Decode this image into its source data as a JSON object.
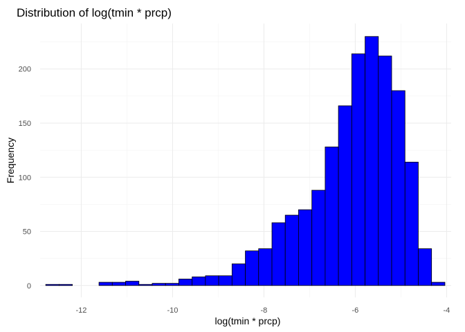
{
  "chart_data": {
    "type": "bar",
    "title": "Distribution of log(tmin * prcp)",
    "xlabel": "log(tmin * prcp)",
    "ylabel": "Frequency",
    "bar_color": "#0000ff",
    "outline_color": "#000000",
    "grid": true,
    "xlim": [
      -12.9,
      -3.9
    ],
    "ylim": [
      -11,
      242
    ],
    "xticks": [
      -12,
      -10,
      -8,
      -6,
      -4
    ],
    "yticks": [
      0,
      50,
      100,
      150,
      200
    ],
    "bins": [
      {
        "x0": -12.777,
        "x1": -12.485,
        "count": 1
      },
      {
        "x0": -12.485,
        "x1": -12.194,
        "count": 1
      },
      {
        "x0": -12.194,
        "x1": -11.903,
        "count": 0
      },
      {
        "x0": -11.903,
        "x1": -11.611,
        "count": 0
      },
      {
        "x0": -11.611,
        "x1": -11.32,
        "count": 3
      },
      {
        "x0": -11.32,
        "x1": -11.029,
        "count": 3
      },
      {
        "x0": -11.029,
        "x1": -10.737,
        "count": 4
      },
      {
        "x0": -10.737,
        "x1": -10.446,
        "count": 1
      },
      {
        "x0": -10.446,
        "x1": -10.155,
        "count": 2
      },
      {
        "x0": -10.155,
        "x1": -9.864,
        "count": 2
      },
      {
        "x0": -9.864,
        "x1": -9.572,
        "count": 6
      },
      {
        "x0": -9.572,
        "x1": -9.281,
        "count": 8
      },
      {
        "x0": -9.281,
        "x1": -8.99,
        "count": 9
      },
      {
        "x0": -8.99,
        "x1": -8.698,
        "count": 9
      },
      {
        "x0": -8.698,
        "x1": -8.407,
        "count": 20
      },
      {
        "x0": -8.407,
        "x1": -8.116,
        "count": 32
      },
      {
        "x0": -8.116,
        "x1": -7.824,
        "count": 34
      },
      {
        "x0": -7.824,
        "x1": -7.533,
        "count": 58
      },
      {
        "x0": -7.533,
        "x1": -7.242,
        "count": 65
      },
      {
        "x0": -7.242,
        "x1": -6.95,
        "count": 70
      },
      {
        "x0": -6.95,
        "x1": -6.659,
        "count": 88
      },
      {
        "x0": -6.659,
        "x1": -6.368,
        "count": 128
      },
      {
        "x0": -6.368,
        "x1": -6.077,
        "count": 166
      },
      {
        "x0": -6.077,
        "x1": -5.785,
        "count": 214
      },
      {
        "x0": -5.785,
        "x1": -5.494,
        "count": 230
      },
      {
        "x0": -5.494,
        "x1": -5.203,
        "count": 212
      },
      {
        "x0": -5.203,
        "x1": -4.911,
        "count": 180
      },
      {
        "x0": -4.911,
        "x1": -4.62,
        "count": 114
      },
      {
        "x0": -4.62,
        "x1": -4.329,
        "count": 34
      },
      {
        "x0": -4.329,
        "x1": -4.037,
        "count": 3
      }
    ]
  }
}
